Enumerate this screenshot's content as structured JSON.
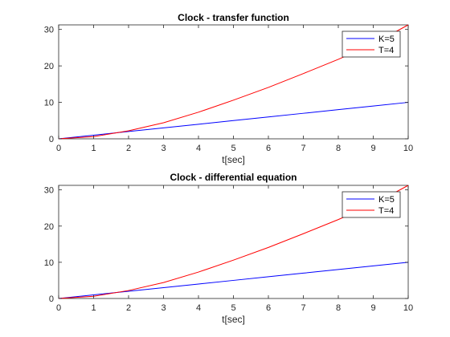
{
  "chart_data": [
    {
      "type": "line",
      "title": "Clock - transfer function",
      "xlabel": "t[sec]",
      "ylabel": "",
      "xlim": [
        0,
        10
      ],
      "ylim": [
        0,
        31.25
      ],
      "xticks": [
        "0",
        "1",
        "2",
        "3",
        "4",
        "5",
        "6",
        "7",
        "8",
        "9",
        "10"
      ],
      "yticks": [
        "0",
        "10",
        "20",
        "30"
      ],
      "grid": false,
      "legend_position": "top-right",
      "series": [
        {
          "name": "K=5",
          "color": "#0000ff",
          "x": [
            0,
            1,
            2,
            3,
            4,
            5,
            6,
            7,
            8,
            9,
            10
          ],
          "y": [
            0,
            1,
            2,
            3,
            4,
            5,
            6,
            7,
            8,
            9,
            10
          ]
        },
        {
          "name": "T=4",
          "color": "#ff0000",
          "x": [
            0,
            1,
            2,
            3,
            4,
            5,
            6,
            7,
            8,
            9,
            10
          ],
          "y": [
            0,
            0.6,
            2.2,
            4.4,
            7.3,
            10.6,
            14.1,
            17.9,
            21.8,
            26.0,
            31.25
          ]
        }
      ]
    },
    {
      "type": "line",
      "title": "Clock - differential equation",
      "xlabel": "t[sec]",
      "ylabel": "",
      "xlim": [
        0,
        10
      ],
      "ylim": [
        0,
        31.25
      ],
      "xticks": [
        "0",
        "1",
        "2",
        "3",
        "4",
        "5",
        "6",
        "7",
        "8",
        "9",
        "10"
      ],
      "yticks": [
        "0",
        "10",
        "20",
        "30"
      ],
      "grid": false,
      "legend_position": "top-right",
      "series": [
        {
          "name": "K=5",
          "color": "#0000ff",
          "x": [
            0,
            1,
            2,
            3,
            4,
            5,
            6,
            7,
            8,
            9,
            10
          ],
          "y": [
            0,
            1,
            2,
            3,
            4,
            5,
            6,
            7,
            8,
            9,
            10
          ]
        },
        {
          "name": "T=4",
          "color": "#ff0000",
          "x": [
            0,
            1,
            2,
            3,
            4,
            5,
            6,
            7,
            8,
            9,
            10
          ],
          "y": [
            0,
            0.6,
            2.2,
            4.4,
            7.3,
            10.6,
            14.1,
            17.9,
            21.8,
            26.0,
            31.25
          ]
        }
      ]
    }
  ]
}
